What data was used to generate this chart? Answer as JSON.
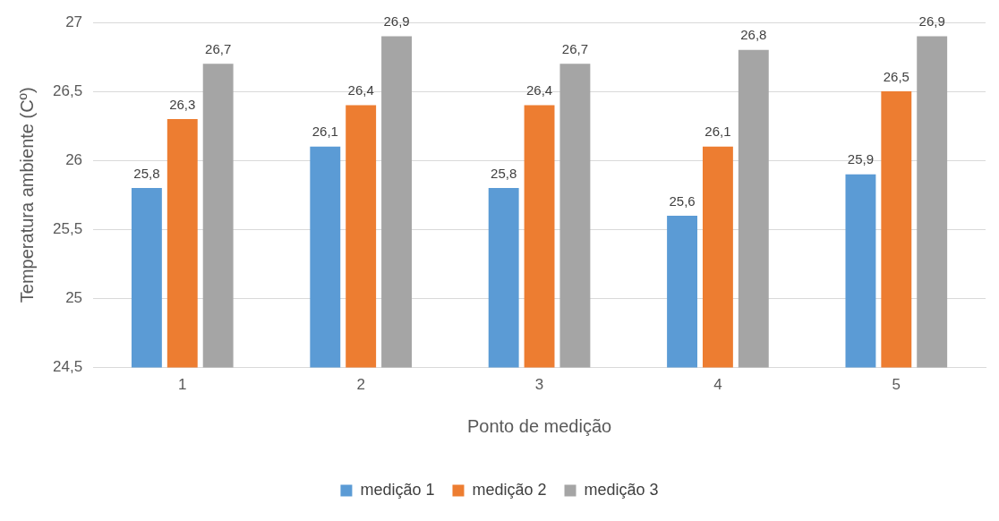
{
  "chart_data": {
    "type": "bar",
    "xlabel": "Ponto de medição",
    "ylabel": "Temperatura ambiente (Cº)",
    "categories": [
      "1",
      "2",
      "3",
      "4",
      "5"
    ],
    "series": [
      {
        "name": "medição 1",
        "color": "#5b9bd5",
        "values": [
          25.8,
          26.1,
          25.8,
          25.6,
          25.9
        ],
        "value_labels": [
          "25,8",
          "26,1",
          "25,8",
          "25,6",
          "25,9"
        ]
      },
      {
        "name": "medição 2",
        "color": "#ed7d31",
        "values": [
          26.3,
          26.4,
          26.4,
          26.1,
          26.5
        ],
        "value_labels": [
          "26,3",
          "26,4",
          "26,4",
          "26,1",
          "26,5"
        ]
      },
      {
        "name": "medição 3",
        "color": "#a5a5a5",
        "values": [
          26.7,
          26.9,
          26.7,
          26.8,
          26.9
        ],
        "value_labels": [
          "26,7",
          "26,9",
          "26,7",
          "26,8",
          "26,9"
        ]
      }
    ],
    "ylim": [
      24.5,
      27
    ],
    "yticks": [
      {
        "value": 24.5,
        "label": "24,5"
      },
      25,
      {
        "value": 25.5,
        "label": "25,5"
      },
      26,
      {
        "value": 26.5,
        "label": "26,5"
      },
      27
    ],
    "grid": "y",
    "legend": "bottom"
  }
}
